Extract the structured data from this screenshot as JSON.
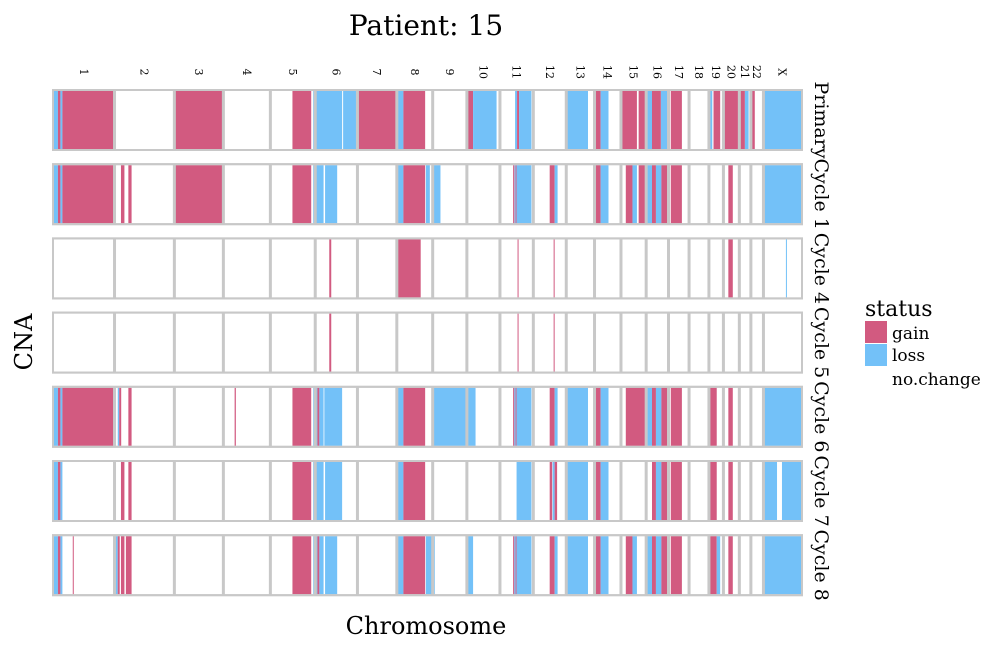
{
  "chart_data": {
    "type": "heatmap",
    "title": "Patient: 15",
    "xlabel": "Chromosome",
    "ylabel": "CNA",
    "chromosomes": [
      "1",
      "2",
      "3",
      "4",
      "5",
      "6",
      "7",
      "8",
      "9",
      "10",
      "11",
      "12",
      "13",
      "14",
      "15",
      "16",
      "17",
      "18",
      "19",
      "20",
      "21",
      "22",
      "X"
    ],
    "chromosome_starts": [
      0,
      248.96,
      491.15,
      689.45,
      879.67,
      1061.21,
      1232.02,
      1391.37,
      1536.51,
      1674.9,
      1808.7,
      1943.79,
      2077.06,
      2191.42,
      2298.46,
      2400.45,
      2490.79,
      2574.05,
      2654.42,
      2713.04,
      2777.49,
      2824.2,
      2875.02
    ],
    "genome_end": 3031.06,
    "panels": [
      "Primary",
      "Cycle 1",
      "Cycle 4",
      "Cycle 5",
      "Cycle 6",
      "Cycle 7",
      "Cycle 8"
    ],
    "segments": [
      [
        [
          "loss",
          0,
          20
        ],
        [
          "gain",
          20,
          30
        ],
        [
          "loss",
          30,
          38
        ],
        [
          "gain",
          38,
          248.96
        ],
        [
          "gain",
          491.15,
          689.45
        ],
        [
          "gain",
          969,
          1045
        ],
        [
          "loss",
          1053,
          1061
        ],
        [
          "loss",
          1061.21,
          1170
        ],
        [
          "loss",
          1174,
          1232
        ],
        [
          "gain",
          1232.02,
          1391.37
        ],
        [
          "loss",
          1391.37,
          1418
        ],
        [
          "gain",
          1418,
          1506
        ],
        [
          "gain",
          1674.9,
          1700
        ],
        [
          "loss",
          1700,
          1795
        ],
        [
          "loss",
          1870,
          1878
        ],
        [
          "gain",
          1878,
          1886
        ],
        [
          "loss",
          1886,
          1936
        ],
        [
          "loss",
          2077.06,
          2165
        ],
        [
          "gain",
          2191.42,
          2216
        ],
        [
          "loss",
          2216,
          2248
        ],
        [
          "gain",
          2298.46,
          2363
        ],
        [
          "gain",
          2370,
          2400
        ],
        [
          "loss",
          2400.45,
          2424
        ],
        [
          "gain",
          2424,
          2460
        ],
        [
          "loss",
          2460,
          2490
        ],
        [
          "gain",
          2500,
          2545
        ],
        [
          "loss",
          2654,
          2668
        ],
        [
          "gain",
          2673,
          2700
        ],
        [
          "gain",
          2713.04,
          2777.49
        ],
        [
          "gain",
          2777.49,
          2800
        ],
        [
          "loss",
          2800,
          2815
        ],
        [
          "gain",
          2824.2,
          2840
        ],
        [
          "loss",
          2878,
          3031.06
        ]
      ],
      [
        [
          "loss",
          0,
          20
        ],
        [
          "gain",
          20,
          30
        ],
        [
          "loss",
          30,
          38
        ],
        [
          "gain",
          38,
          248.96
        ],
        [
          "gain",
          275,
          289
        ],
        [
          "gain",
          305,
          318
        ],
        [
          "gain",
          491.15,
          689.45
        ],
        [
          "gain",
          969,
          1045
        ],
        [
          "loss",
          1053,
          1061
        ],
        [
          "loss",
          1061.21,
          1095
        ],
        [
          "loss",
          1101,
          1150
        ],
        [
          "loss",
          1391.37,
          1418
        ],
        [
          "gain",
          1418,
          1506
        ],
        [
          "loss",
          1509,
          1525
        ],
        [
          "loss",
          1536.51,
          1568
        ],
        [
          "gain",
          1862,
          1867
        ],
        [
          "loss",
          1868,
          1872
        ],
        [
          "gain",
          1872,
          1876
        ],
        [
          "loss",
          1876,
          1936
        ],
        [
          "gain",
          2010,
          2030
        ],
        [
          "loss",
          2030,
          2042
        ],
        [
          "gain",
          2191.42,
          2216
        ],
        [
          "loss",
          2216,
          2248
        ],
        [
          "gain",
          2318,
          2345
        ],
        [
          "loss",
          2345,
          2363
        ],
        [
          "gain",
          2370,
          2400
        ],
        [
          "loss",
          2400.45,
          2424
        ],
        [
          "gain",
          2424,
          2440
        ],
        [
          "loss",
          2440,
          2462
        ],
        [
          "gain",
          2462,
          2490
        ],
        [
          "gain",
          2500,
          2545
        ],
        [
          "gain",
          2733,
          2751
        ],
        [
          "loss",
          2878,
          3031.06
        ]
      ],
      [
        [
          "gain",
          1118,
          1126
        ],
        [
          "gain",
          1388,
          1391.37
        ],
        [
          "gain",
          1391.37,
          1488
        ],
        [
          "gain",
          1880,
          1884
        ],
        [
          "gain",
          2026,
          2030
        ],
        [
          "gain",
          2733,
          2751
        ],
        [
          "loss",
          2966,
          2970
        ]
      ],
      [
        [
          "gain",
          1118,
          1126
        ],
        [
          "gain",
          1880,
          1884
        ],
        [
          "gain",
          2026,
          2030
        ]
      ],
      [
        [
          "loss",
          0,
          20
        ],
        [
          "gain",
          20,
          30
        ],
        [
          "loss",
          30,
          38
        ],
        [
          "gain",
          38,
          248.96
        ],
        [
          "loss",
          262,
          268
        ],
        [
          "gain",
          268,
          276
        ],
        [
          "gain",
          305,
          318
        ],
        [
          "gain",
          735,
          740
        ],
        [
          "gain",
          969,
          1045
        ],
        [
          "loss",
          1053,
          1061
        ],
        [
          "loss",
          1061.21,
          1070
        ],
        [
          "gain",
          1070,
          1078
        ],
        [
          "loss",
          1078,
          1095
        ],
        [
          "loss",
          1098,
          1170
        ],
        [
          "loss",
          1391.37,
          1418
        ],
        [
          "gain",
          1418,
          1506
        ],
        [
          "loss",
          1536.51,
          1674.9
        ],
        [
          "loss",
          1674.9,
          1710
        ],
        [
          "gain",
          1862,
          1867
        ],
        [
          "loss",
          1867,
          1872
        ],
        [
          "gain",
          1872,
          1876
        ],
        [
          "loss",
          1876,
          1936
        ],
        [
          "gain",
          2010,
          2030
        ],
        [
          "loss",
          2030,
          2042
        ],
        [
          "loss",
          2077.06,
          2165
        ],
        [
          "gain",
          2191.42,
          2216
        ],
        [
          "loss",
          2216,
          2248
        ],
        [
          "gain",
          2318,
          2400
        ],
        [
          "loss",
          2400.45,
          2424
        ],
        [
          "gain",
          2424,
          2440
        ],
        [
          "loss",
          2440,
          2462
        ],
        [
          "gain",
          2462,
          2490
        ],
        [
          "gain",
          2500,
          2545
        ],
        [
          "gain",
          2654,
          2686
        ],
        [
          "gain",
          2733,
          2751
        ],
        [
          "loss",
          2878,
          3031.06
        ]
      ],
      [
        [
          "loss",
          0,
          20
        ],
        [
          "gain",
          20,
          30
        ],
        [
          "loss",
          30,
          38
        ],
        [
          "gain",
          275,
          289
        ],
        [
          "gain",
          305,
          318
        ],
        [
          "gain",
          969,
          1045
        ],
        [
          "loss",
          1053,
          1061
        ],
        [
          "loss",
          1061.21,
          1095
        ],
        [
          "loss",
          1101,
          1170
        ],
        [
          "loss",
          1391.37,
          1418
        ],
        [
          "gain",
          1418,
          1506
        ],
        [
          "loss",
          1876,
          1936
        ],
        [
          "gain",
          2010,
          2020
        ],
        [
          "loss",
          2022,
          2030
        ],
        [
          "gain",
          2030,
          2040
        ],
        [
          "loss",
          2077.06,
          2165
        ],
        [
          "gain",
          2191.42,
          2216
        ],
        [
          "loss",
          2216,
          2248
        ],
        [
          "gain",
          2424,
          2440
        ],
        [
          "loss",
          2440,
          2462
        ],
        [
          "gain",
          2462,
          2490
        ],
        [
          "gain",
          2500,
          2545
        ],
        [
          "gain",
          2654,
          2686
        ],
        [
          "gain",
          2733,
          2751
        ],
        [
          "loss",
          2878,
          2930
        ],
        [
          "loss",
          2950,
          3031.06
        ]
      ],
      [
        [
          "loss",
          0,
          20
        ],
        [
          "gain",
          20,
          30
        ],
        [
          "loss",
          30,
          38
        ],
        [
          "gain",
          80,
          84
        ],
        [
          "loss",
          255,
          262
        ],
        [
          "gain",
          262,
          270
        ],
        [
          "gain",
          275,
          289
        ],
        [
          "gain",
          295,
          318
        ],
        [
          "gain",
          969,
          1045
        ],
        [
          "loss",
          1053,
          1061
        ],
        [
          "loss",
          1061.21,
          1070
        ],
        [
          "gain",
          1070,
          1078
        ],
        [
          "loss",
          1078,
          1095
        ],
        [
          "loss",
          1101,
          1150
        ],
        [
          "loss",
          1391.37,
          1418
        ],
        [
          "gain",
          1418,
          1506
        ],
        [
          "loss",
          1509,
          1545
        ],
        [
          "loss",
          1674.9,
          1700
        ],
        [
          "gain",
          1862,
          1867
        ],
        [
          "loss",
          1867,
          1872
        ],
        [
          "gain",
          1872,
          1876
        ],
        [
          "loss",
          1876,
          1936
        ],
        [
          "gain",
          2010,
          2030
        ],
        [
          "loss",
          2030,
          2042
        ],
        [
          "loss",
          2077.06,
          2165
        ],
        [
          "gain",
          2191.42,
          2216
        ],
        [
          "loss",
          2216,
          2248
        ],
        [
          "gain",
          2318,
          2345
        ],
        [
          "loss",
          2345,
          2363
        ],
        [
          "loss",
          2400.45,
          2424
        ],
        [
          "gain",
          2424,
          2440
        ],
        [
          "loss",
          2440,
          2462
        ],
        [
          "gain",
          2462,
          2490
        ],
        [
          "gain",
          2500,
          2545
        ],
        [
          "gain",
          2654,
          2686
        ],
        [
          "loss",
          2686,
          2700
        ],
        [
          "gain",
          2733,
          2751
        ],
        [
          "loss",
          2878,
          3031.06
        ]
      ]
    ],
    "legend": {
      "title": "status",
      "entries": [
        {
          "label": "gain",
          "color": "#d25a80"
        },
        {
          "label": "loss",
          "color": "#73c1f8"
        },
        {
          "label": "no.change",
          "color": "#ffffff"
        }
      ]
    },
    "colors": {
      "gain": "#d25a80",
      "loss": "#73c1f8",
      "frame": "#c8c8c8"
    }
  }
}
